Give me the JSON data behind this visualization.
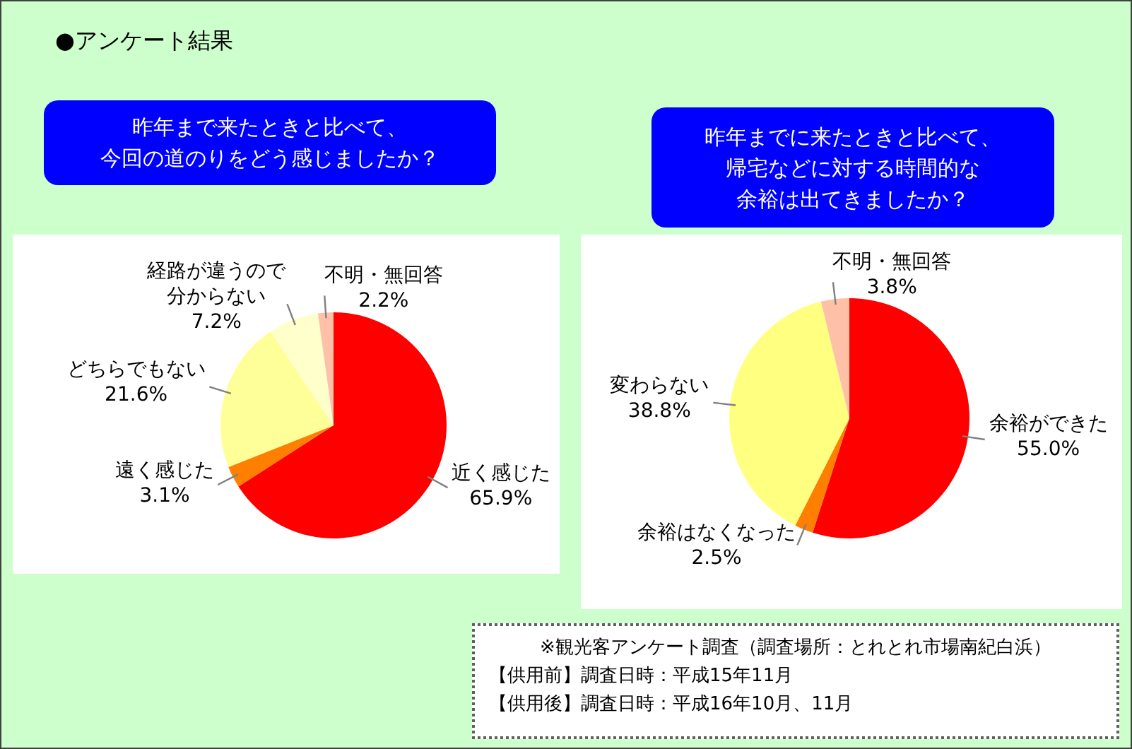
{
  "chart_data": [
    {
      "type": "pie",
      "title": "昨年まで来たときと比べて、今回の道のりをどう感じましたか？",
      "annotations": [
        "●アンケート結果"
      ],
      "categories": [
        "近く感じた",
        "遠く感じた",
        "どちらでもない",
        "経路が違うので分からない",
        "不明・無回答"
      ],
      "values": [
        65.9,
        3.1,
        21.6,
        7.2,
        2.2
      ],
      "value_labels": [
        "65.9%",
        "3.1%",
        "21.6%",
        "7.2%",
        "2.2%"
      ],
      "colors": [
        "#ff0000",
        "#ff7f00",
        "#ffff99",
        "#ffffcc",
        "#ffc0a8"
      ]
    },
    {
      "type": "pie",
      "title": "昨年までに来たときと比べて、帰宅などに対する時間的な余裕は出てきましたか？",
      "annotations": [
        "※観光客アンケート調査（調査場所：とれとれ市場南紀白浜）",
        "【供用前】調査日時：平成15年11月",
        "【供用後】調査日時：平成16年10月、11月"
      ],
      "categories": [
        "余裕ができた",
        "余裕はなくなった",
        "変わらない",
        "不明・無回答"
      ],
      "values": [
        55.0,
        2.5,
        38.8,
        3.8
      ],
      "value_labels": [
        "55.0%",
        "2.5%",
        "38.8%",
        "3.8%"
      ],
      "colors": [
        "#ff0000",
        "#ff7f00",
        "#ffff80",
        "#ffc0a8"
      ]
    }
  ]
}
